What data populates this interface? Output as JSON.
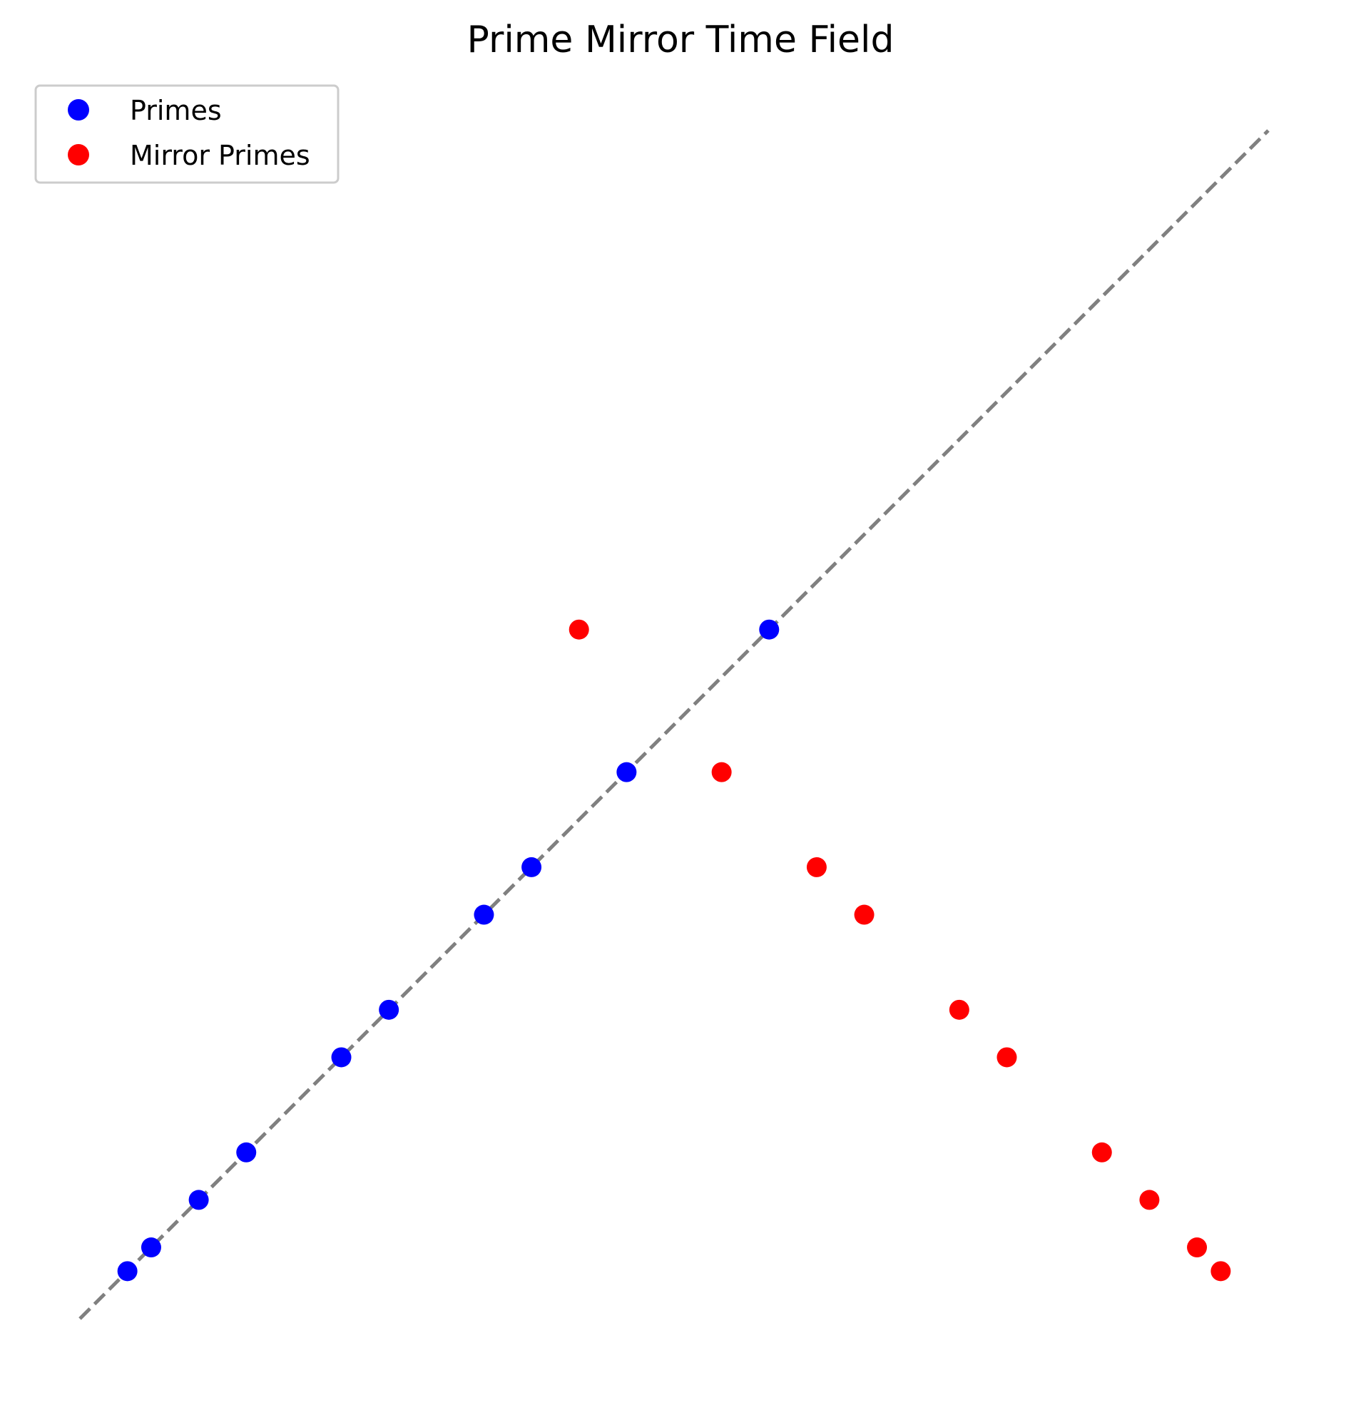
{
  "chart_data": {
    "type": "scatter",
    "title": "Prime Mirror Time Field",
    "xlabel": "",
    "ylabel": "",
    "axes_visible": false,
    "grid": false,
    "legend_position": "upper-left",
    "xlim": [
      -0.5,
      50.5
    ],
    "ylim": [
      -0.5,
      50.5
    ],
    "reference_line": {
      "x": [
        0,
        50
      ],
      "y": [
        0,
        50
      ],
      "style": "dashed",
      "color": "#808080"
    },
    "series": [
      {
        "name": "Primes",
        "color": "#0000ff",
        "points": [
          [
            2,
            2
          ],
          [
            3,
            3
          ],
          [
            5,
            5
          ],
          [
            7,
            7
          ],
          [
            11,
            11
          ],
          [
            13,
            13
          ],
          [
            17,
            17
          ],
          [
            19,
            19
          ],
          [
            23,
            23
          ],
          [
            29,
            29
          ]
        ]
      },
      {
        "name": "Mirror Primes",
        "color": "#ff0000",
        "points": [
          [
            48,
            2
          ],
          [
            47,
            3
          ],
          [
            45,
            5
          ],
          [
            43,
            7
          ],
          [
            39,
            11
          ],
          [
            37,
            13
          ],
          [
            33,
            17
          ],
          [
            31,
            19
          ],
          [
            27,
            23
          ],
          [
            21,
            29
          ]
        ]
      }
    ]
  }
}
